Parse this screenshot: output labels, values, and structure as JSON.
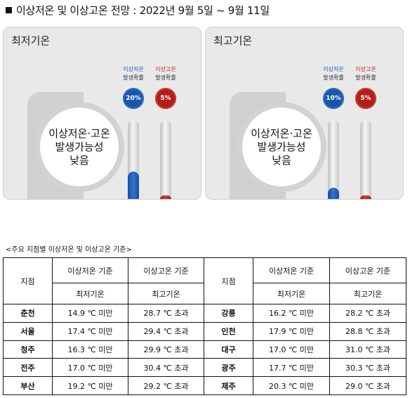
{
  "title": "이상저온 및 이상고온 전망 : 2022년 9월 5일 ~ 9월 11일",
  "panels": [
    {
      "title": "최저기온",
      "summary": [
        "이상저온·고온",
        "발생가능성",
        "낮음"
      ],
      "columns": [
        {
          "label_top": "이상저온",
          "label_bottom": "발생확률",
          "value": "20%",
          "fraction": 0.2,
          "color": "#1a56a8"
        },
        {
          "label_top": "이상고온",
          "label_bottom": "발생확률",
          "value": "5%",
          "fraction": 0.05,
          "color": "#b0201a"
        }
      ]
    },
    {
      "title": "최고기온",
      "summary": [
        "이상저온·고온",
        "발생가능성",
        "낮음"
      ],
      "columns": [
        {
          "label_top": "이상저온",
          "label_bottom": "발생확률",
          "value": "10%",
          "fraction": 0.1,
          "color": "#1a56a8"
        },
        {
          "label_top": "이상고온",
          "label_bottom": "발생확률",
          "value": "5%",
          "fraction": 0.05,
          "color": "#b0201a"
        }
      ]
    }
  ],
  "table": {
    "caption": "<주요 지점별 이상저온 및 이상고온 기준>",
    "station_header": "지점",
    "low_header": "이상저온 기준",
    "high_header": "이상고온 기준",
    "low_sub": "최저기온",
    "high_sub": "최고기온",
    "rows": [
      [
        {
          "name": "춘천",
          "low": "14.9 ℃ 미만",
          "high": "28.7 ℃ 초과"
        },
        {
          "name": "강릉",
          "low": "16.2 ℃ 미만",
          "high": "28.2 ℃ 초과"
        }
      ],
      [
        {
          "name": "서울",
          "low": "17.4 ℃ 미만",
          "high": "29.4 ℃ 초과"
        },
        {
          "name": "인천",
          "low": "17.9 ℃ 미만",
          "high": "28.8 ℃ 초과"
        }
      ],
      [
        {
          "name": "청주",
          "low": "16.3 ℃ 미만",
          "high": "29.9 ℃ 초과"
        },
        {
          "name": "대구",
          "low": "17.0 ℃ 미만",
          "high": "31.0 ℃ 초과"
        }
      ],
      [
        {
          "name": "전주",
          "low": "17.0 ℃ 미만",
          "high": "30.4 ℃ 초과"
        },
        {
          "name": "광주",
          "low": "17.7 ℃ 미만",
          "high": "30.3 ℃ 초과"
        }
      ],
      [
        {
          "name": "부산",
          "low": "19.2 ℃ 미만",
          "high": "29.2 ℃ 초과"
        },
        {
          "name": "제주",
          "low": "20.3 ℃ 미만",
          "high": "29.0 ℃ 초과"
        }
      ]
    ]
  }
}
